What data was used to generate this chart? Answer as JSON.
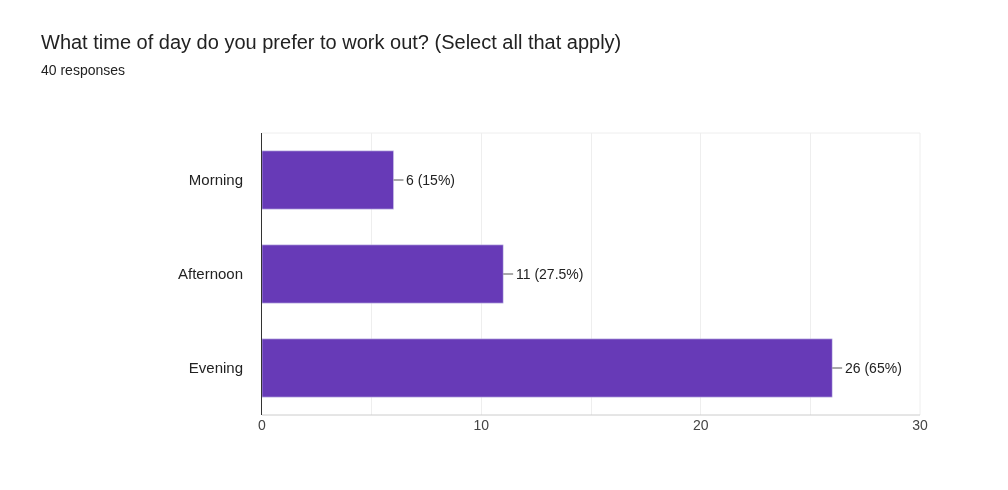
{
  "chart_data": {
    "type": "bar",
    "orientation": "horizontal",
    "title": "What time of day do you prefer to work out? (Select all that apply)",
    "subtitle": "40 responses",
    "categories": [
      "Morning",
      "Afternoon",
      "Evening"
    ],
    "values": [
      6,
      11,
      26
    ],
    "value_labels": [
      "6 (15%)",
      "11 (27.5%)",
      "26 (65%)"
    ],
    "color": "#673ab7",
    "xlim": [
      0,
      30
    ],
    "xticks": [
      0,
      {
        "value": 5,
        "label": null
      },
      10,
      {
        "value": 15,
        "label": null
      },
      20,
      {
        "value": 25,
        "label": null
      },
      30
    ],
    "grid": "x",
    "legend": false
  }
}
